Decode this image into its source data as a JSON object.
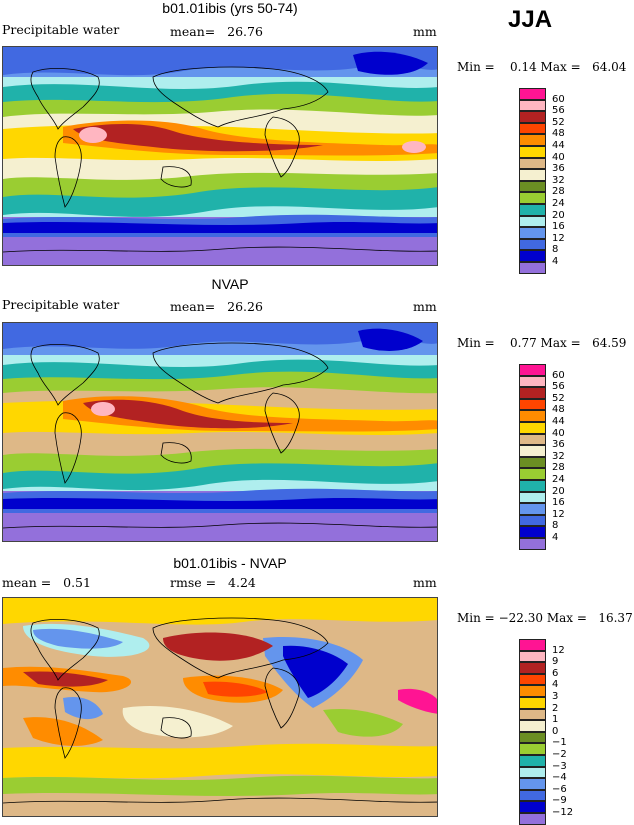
{
  "season": "JJA",
  "panels": [
    {
      "id": "model",
      "title": "b01.01ibis (yrs 50-74)",
      "left_label": "Precipitable water",
      "center_label": "mean=",
      "center_value": "26.76",
      "right_label": "mm",
      "min_label": "Min =",
      "min_value": "0.14",
      "max_label": "Max =",
      "max_value": "64.04",
      "colorbar": [
        "60",
        "56",
        "52",
        "48",
        "44",
        "40",
        "36",
        "32",
        "28",
        "24",
        "20",
        "16",
        "12",
        "8",
        "4"
      ]
    },
    {
      "id": "obs",
      "title": "NVAP",
      "left_label": "Precipitable water",
      "center_label": "mean=",
      "center_value": "26.26",
      "right_label": "mm",
      "min_label": "Min =",
      "min_value": "0.77",
      "max_label": "Max =",
      "max_value": "64.59",
      "colorbar": [
        "60",
        "56",
        "52",
        "48",
        "44",
        "40",
        "36",
        "32",
        "28",
        "24",
        "20",
        "16",
        "12",
        "8",
        "4"
      ]
    },
    {
      "id": "diff",
      "title": "b01.01ibis - NVAP",
      "left_label": "mean =",
      "left_value": "0.51",
      "center_label": "rmse =",
      "center_value": "4.24",
      "right_label": "mm",
      "min_label": "Min =",
      "min_value": "−22.30",
      "max_label": "Max =",
      "max_value": "16.37",
      "colorbar": [
        "12",
        "9",
        "6",
        "4",
        "3",
        "2",
        "1",
        "0",
        "−1",
        "−2",
        "−3",
        "−4",
        "−6",
        "−9",
        "−12"
      ]
    }
  ],
  "colors": {
    "abs_scale": [
      "#ff1493",
      "#ffb6c1",
      "#b22222",
      "#ff4500",
      "#ff8c00",
      "#ffd700",
      "#deb887",
      "#f5f0d0",
      "#6b8e23",
      "#9acd32",
      "#20b2aa",
      "#afeeee",
      "#6495ed",
      "#4169e1",
      "#0000cd",
      "#9370db"
    ],
    "diff_scale": [
      "#ff1493",
      "#ffb6c1",
      "#b22222",
      "#ff4500",
      "#ff8c00",
      "#ffd700",
      "#deb887",
      "#f5f0d0",
      "#6b8e23",
      "#9acd32",
      "#20b2aa",
      "#afeeee",
      "#6495ed",
      "#4169e1",
      "#0000cd",
      "#9370db"
    ]
  }
}
